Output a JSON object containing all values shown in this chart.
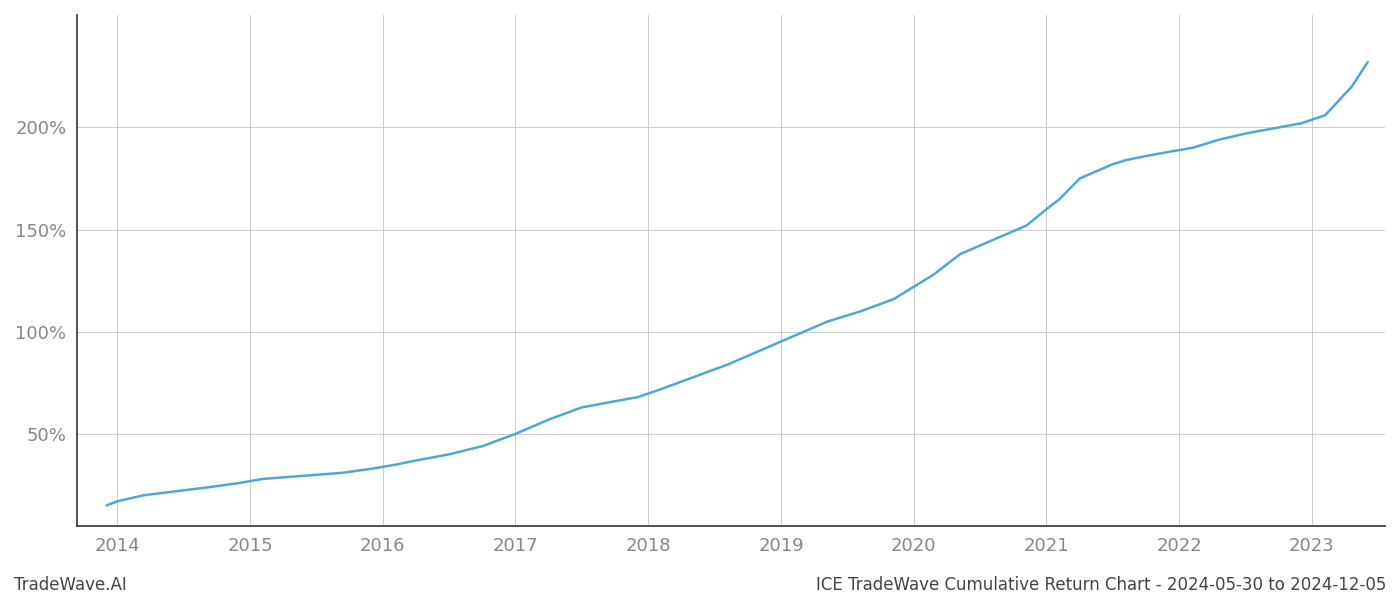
{
  "title": "",
  "footer_left": "TradeWave.AI",
  "footer_right": "ICE TradeWave Cumulative Return Chart - 2024-05-30 to 2024-12-05",
  "line_color": "#4ea8d2",
  "background_color": "#ffffff",
  "grid_color": "#cccccc",
  "axis_color": "#333333",
  "text_color": "#888888",
  "footer_color": "#444444",
  "xlim": [
    2013.7,
    2023.55
  ],
  "ylim": [
    5,
    255
  ],
  "yticks": [
    50,
    100,
    150,
    200
  ],
  "xticks": [
    2014,
    2015,
    2016,
    2017,
    2018,
    2019,
    2020,
    2021,
    2022,
    2023
  ],
  "x": [
    2013.92,
    2014.0,
    2014.2,
    2014.45,
    2014.7,
    2014.92,
    2015.1,
    2015.3,
    2015.5,
    2015.7,
    2015.92,
    2016.1,
    2016.25,
    2016.5,
    2016.75,
    2017.0,
    2017.25,
    2017.5,
    2017.75,
    2017.92,
    2018.1,
    2018.35,
    2018.6,
    2018.85,
    2019.1,
    2019.35,
    2019.6,
    2019.85,
    2020.0,
    2020.15,
    2020.35,
    2020.6,
    2020.85,
    2021.0,
    2021.1,
    2021.25,
    2021.5,
    2021.6,
    2021.75,
    2021.92,
    2022.1,
    2022.3,
    2022.5,
    2022.75,
    2022.92,
    2023.1,
    2023.3,
    2023.42
  ],
  "y": [
    15,
    17,
    20,
    22,
    24,
    26,
    28,
    29,
    30,
    31,
    33,
    35,
    37,
    40,
    44,
    50,
    57,
    63,
    66,
    68,
    72,
    78,
    84,
    91,
    98,
    105,
    110,
    116,
    122,
    128,
    138,
    145,
    152,
    160,
    165,
    175,
    182,
    184,
    186,
    188,
    190,
    194,
    197,
    200,
    202,
    206,
    220,
    232
  ]
}
